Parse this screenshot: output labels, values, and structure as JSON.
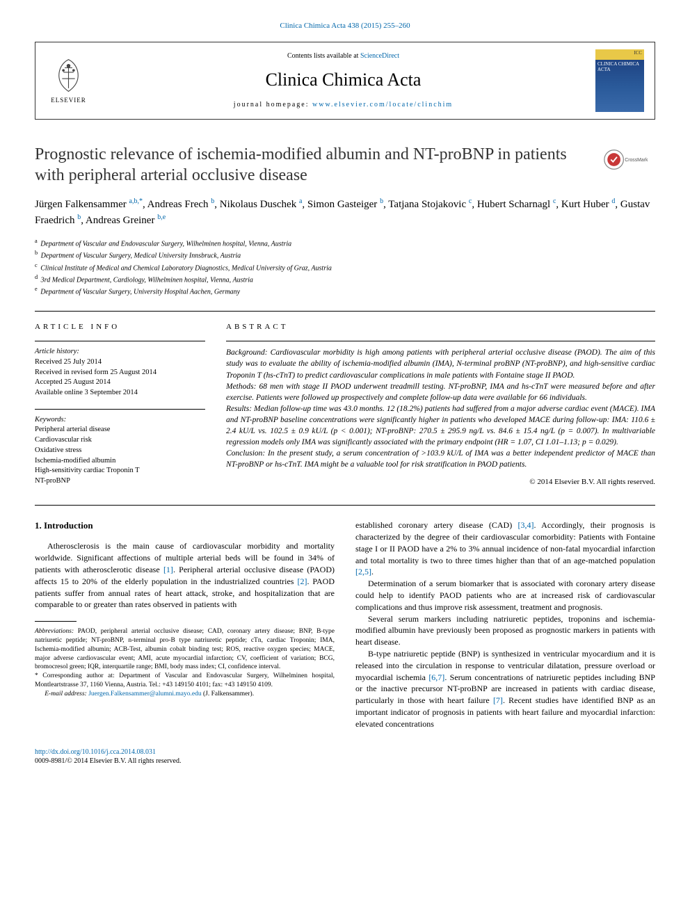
{
  "topLink": {
    "text": "Clinica Chimica Acta 438 (2015) 255–260",
    "href": "#"
  },
  "header": {
    "elsevierLabel": "ELSEVIER",
    "contentsPrefix": "Contents lists available at ",
    "contentsLink": "ScienceDirect",
    "journalName": "Clinica Chimica Acta",
    "homepageLabel": "journal homepage: ",
    "homepageLink": "www.elsevier.com/locate/clinchim",
    "coverLabel": "ICC",
    "coverTitle": "CLINICA CHIMICA ACTA"
  },
  "article": {
    "title": "Prognostic relevance of ischemia-modified albumin and NT-proBNP in patients with peripheral arterial occlusive disease",
    "crossmarkLabel": "CrossMark"
  },
  "authors": [
    {
      "name": "Jürgen Falkensammer ",
      "sup": "a,b,",
      "star": "*"
    },
    {
      "name": ", Andreas Frech ",
      "sup": "b"
    },
    {
      "name": ", Nikolaus Duschek ",
      "sup": "a"
    },
    {
      "name": ", Simon Gasteiger ",
      "sup": "b"
    },
    {
      "name": ", Tatjana Stojakovic ",
      "sup": "c"
    },
    {
      "name": ", Hubert Scharnagl ",
      "sup": "c"
    },
    {
      "name": ", Kurt Huber ",
      "sup": "d"
    },
    {
      "name": ", Gustav Fraedrich ",
      "sup": "b"
    },
    {
      "name": ", Andreas Greiner ",
      "sup": "b,e"
    }
  ],
  "affiliations": [
    {
      "sup": "a",
      "text": " Department of Vascular and Endovascular Surgery, Wilhelminen hospital, Vienna, Austria"
    },
    {
      "sup": "b",
      "text": " Department of Vascular Surgery, Medical University Innsbruck, Austria"
    },
    {
      "sup": "c",
      "text": " Clinical Institute of Medical and Chemical Laboratory Diagnostics, Medical University of Graz, Austria"
    },
    {
      "sup": "d",
      "text": " 3rd Medical Department, Cardiology, Wilhelminen hospital, Vienna, Austria"
    },
    {
      "sup": "e",
      "text": " Department of Vascular Surgery, University Hospital Aachen, Germany"
    }
  ],
  "articleInfo": {
    "label": "ARTICLE INFO",
    "historyTitle": "Article history:",
    "history": [
      "Received 25 July 2014",
      "Received in revised form 25 August 2014",
      "Accepted 25 August 2014",
      "Available online 3 September 2014"
    ],
    "keywordsTitle": "Keywords:",
    "keywords": [
      "Peripheral arterial disease",
      "Cardiovascular risk",
      "Oxidative stress",
      "Ischemia-modified albumin",
      "High-sensitivity cardiac Troponin T",
      "NT-proBNP"
    ]
  },
  "abstract": {
    "label": "ABSTRACT",
    "background": "Background: Cardiovascular morbidity is high among patients with peripheral arterial occlusive disease (PAOD). The aim of this study was to evaluate the ability of ischemia-modified albumin (IMA), N-terminal proBNP (NT-proBNP), and high-sensitive cardiac Troponin T (hs-cTnT) to predict cardiovascular complications in male patients with Fontaine stage II PAOD.",
    "methods": "Methods: 68 men with stage II PAOD underwent treadmill testing. NT-proBNP, IMA and hs-cTnT were measured before and after exercise. Patients were followed up prospectively and complete follow-up data were available for 66 individuals.",
    "results": "Results: Median follow-up time was 43.0 months. 12 (18.2%) patients had suffered from a major adverse cardiac event (MACE). IMA and NT-proBNP baseline concentrations were significantly higher in patients who developed MACE during follow-up: IMA: 110.6 ± 2.4 kU/L vs. 102.5 ± 0.9 kU/L (p < 0.001); NT-proBNP: 270.5 ± 295.9 ng/L vs. 84.6 ± 15.4 ng/L (p = 0.007). In multivariable regression models only IMA was significantly associated with the primary endpoint (HR = 1.07, CI 1.01–1.13; p = 0.029).",
    "conclusion": "Conclusion: In the present study, a serum concentration of >103.9 kU/L of IMA was a better independent predictor of MACE than NT-proBNP or hs-cTnT. IMA might be a valuable tool for risk stratification in PAOD patients.",
    "copyright": "© 2014 Elsevier B.V. All rights reserved."
  },
  "body": {
    "introHeading": "1. Introduction",
    "col1p1": "Atherosclerosis is the main cause of cardiovascular morbidity and mortality worldwide. Significant affections of multiple arterial beds will be found in 34% of patients with atherosclerotic disease ",
    "col1ref1": "[1]",
    "col1p1b": ". Peripheral arterial occlusive disease (PAOD) affects 15 to 20% of the elderly population in the industrialized countries ",
    "col1ref2": "[2]",
    "col1p1c": ". PAOD patients suffer from annual rates of heart attack, stroke, and hospitalization that are comparable to or greater than rates observed in patients with",
    "col2p1a": "established coronary artery disease (CAD) ",
    "col2ref1": "[3,4]",
    "col2p1b": ". Accordingly, their prognosis is characterized by the degree of their cardiovascular comorbidity: Patients with Fontaine stage I or II PAOD have a 2% to 3% annual incidence of non-fatal myocardial infarction and total mortality is two to three times higher than that of an age-matched population ",
    "col2ref2": "[2,5]",
    "col2p1c": ".",
    "col2p2": "Determination of a serum biomarker that is associated with coronary artery disease could help to identify PAOD patients who are at increased risk of cardiovascular complications and thus improve risk assessment, treatment and prognosis.",
    "col2p3": "Several serum markers including natriuretic peptides, troponins and ischemia-modified albumin have previously been proposed as prognostic markers in patients with heart disease.",
    "col2p4a": "B-type natriuretic peptide (BNP) is synthesized in ventricular myocardium and it is released into the circulation in response to ventricular dilatation, pressure overload or myocardial ischemia ",
    "col2ref3": "[6,7]",
    "col2p4b": ". Serum concentrations of natriuretic peptides including BNP or the inactive precursor NT-proBNP are increased in patients with cardiac disease, particularly in those with heart failure ",
    "col2ref4": "[7]",
    "col2p4c": ". Recent studies have identified BNP as an important indicator of prognosis in patients with heart failure and myocardial infarction: elevated concentrations"
  },
  "footnotes": {
    "abbrevLabel": "Abbreviations:",
    "abbrev": " PAOD, peripheral arterial occlusive disease; CAD, coronary artery disease; BNP, B-type natriuretic peptide; NT-proBNP, n-terminal pro-B type natriuretic peptide; cTn, cardiac Troponin; IMA, Ischemia-modified albumin; ACB-Test, albumin cobalt binding test; ROS, reactive oxygen species; MACE, major adverse cardiovascular event; AMI, acute myocardial infarction; CV, coefficient of variation; BCG, bromocresol green; IQR, interquartile range; BMI, body mass index; CI, confidence interval.",
    "corrStar": "*",
    "corr": " Corresponding author at: Department of Vascular and Endovascular Surgery, Wilhelminen hospital, Montleartstrasse 37, 1160 Vienna, Austria. Tel.: +43 149150 4101; fax: +43 149150 4109.",
    "emailLabel": "E-mail address: ",
    "email": "Juergen.Falkensammer@alumni.mayo.edu",
    "emailSuffix": " (J. Falkensammer)."
  },
  "footer": {
    "doi": "http://dx.doi.org/10.1016/j.cca.2014.08.031",
    "issn": "0009-8981/© 2014 Elsevier B.V. All rights reserved."
  },
  "colors": {
    "link": "#0066aa",
    "text": "#000000",
    "border": "#333333"
  }
}
